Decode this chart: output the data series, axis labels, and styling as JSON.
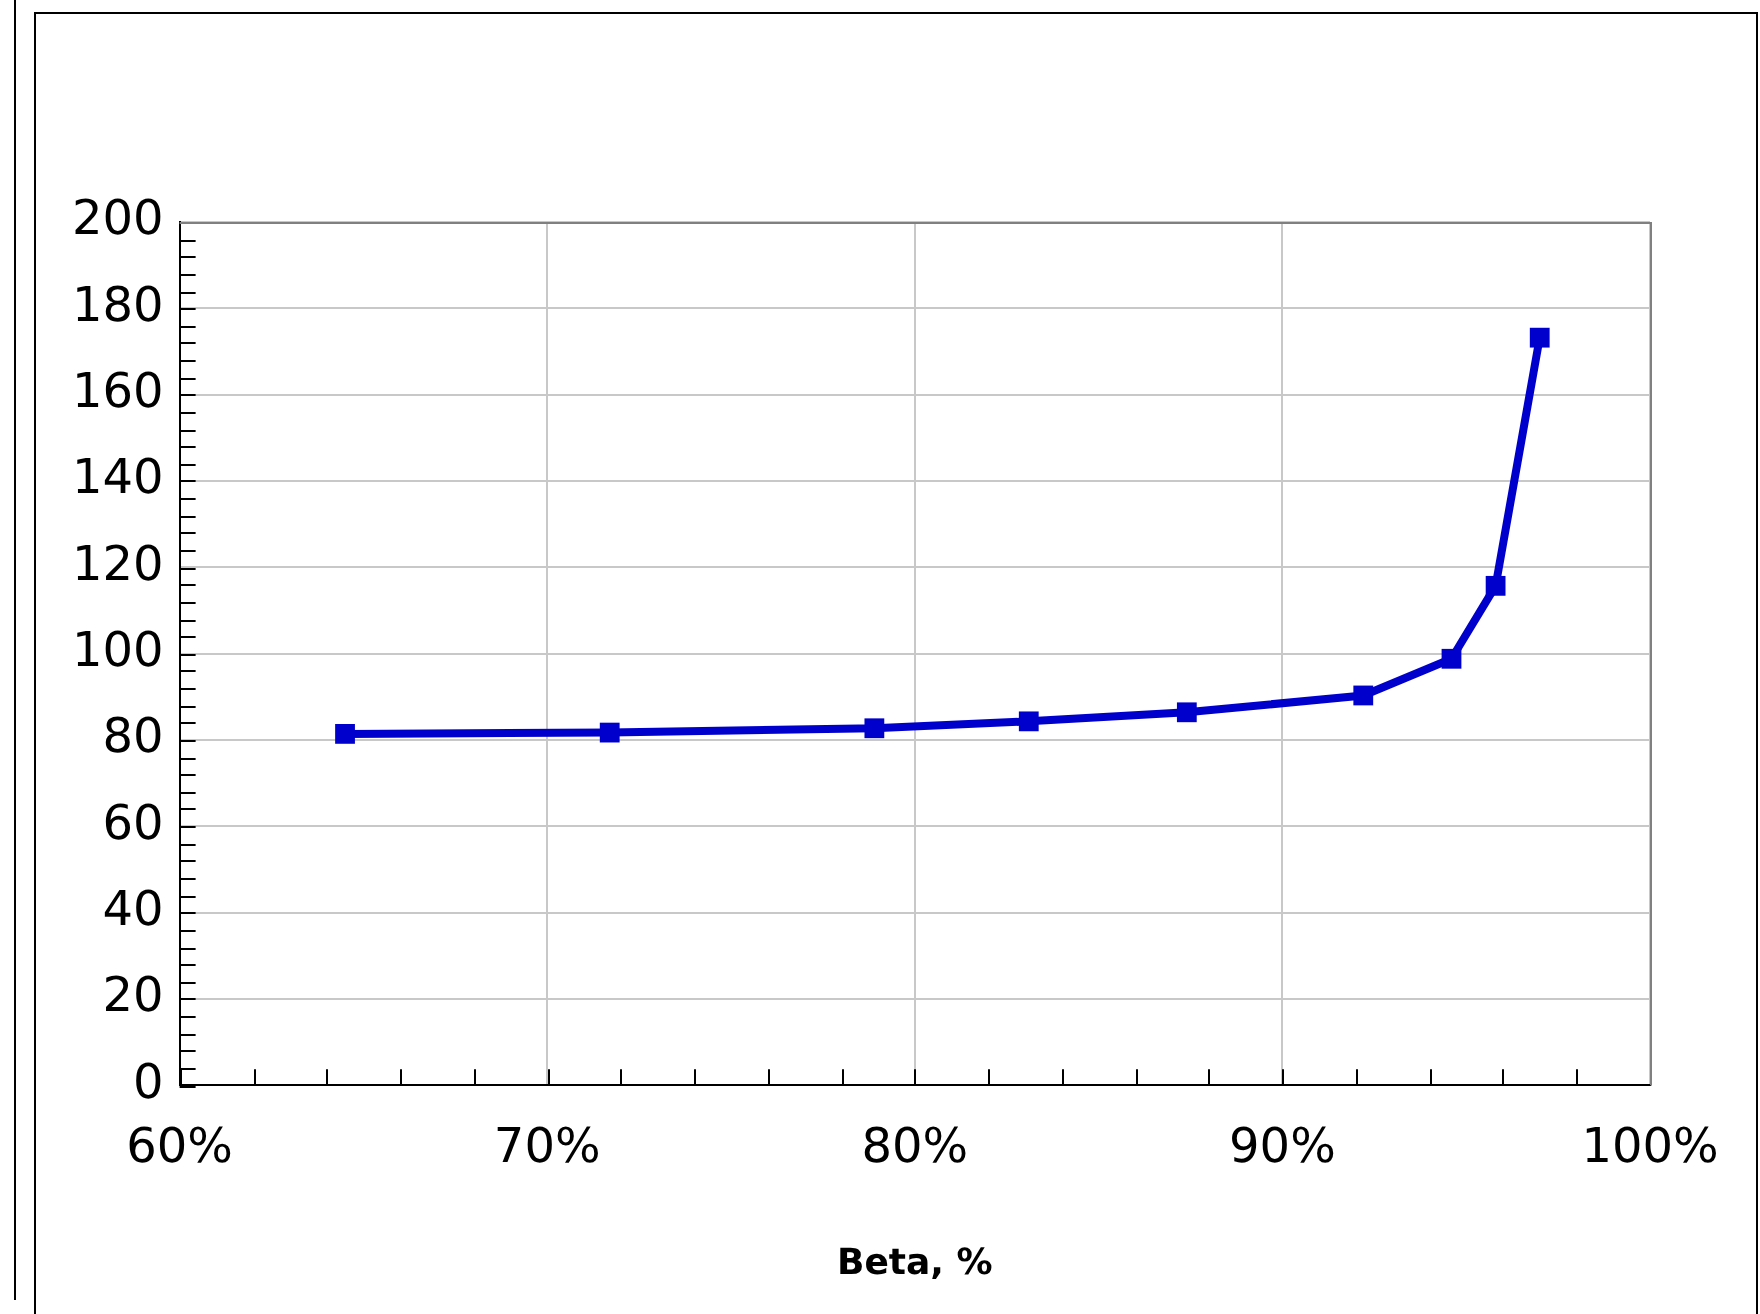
{
  "chart_data": {
    "type": "line",
    "xlabel": "Beta, %",
    "x": [
      64.5,
      71.7,
      78.9,
      83.1,
      87.4,
      92.2,
      94.6,
      95.8,
      97.0
    ],
    "series": [
      {
        "color": "#0000cc",
        "values": [
          81.4,
          81.7,
          82.7,
          84.3,
          86.4,
          90.3,
          98.8,
          115.7,
          173.2
        ]
      }
    ],
    "xlim": [
      60,
      100
    ],
    "xticks": [
      {
        "value": 60,
        "label": "60%"
      },
      {
        "value": 62,
        "label": null
      },
      {
        "value": 64,
        "label": null
      },
      {
        "value": 66,
        "label": null
      },
      {
        "value": 68,
        "label": null
      },
      {
        "value": 70,
        "label": "70%"
      },
      {
        "value": 72,
        "label": null
      },
      {
        "value": 74,
        "label": null
      },
      {
        "value": 76,
        "label": null
      },
      {
        "value": 78,
        "label": null
      },
      {
        "value": 80,
        "label": "80%"
      },
      {
        "value": 82,
        "label": null
      },
      {
        "value": 84,
        "label": null
      },
      {
        "value": 86,
        "label": null
      },
      {
        "value": 88,
        "label": null
      },
      {
        "value": 90,
        "label": "90%"
      },
      {
        "value": 92,
        "label": null
      },
      {
        "value": 94,
        "label": null
      },
      {
        "value": 96,
        "label": null
      },
      {
        "value": 98,
        "label": null
      },
      {
        "value": 100,
        "label": "100%"
      }
    ],
    "ylim": [
      0,
      200
    ],
    "yticks": [
      0,
      {
        "value": 4,
        "label": null
      },
      {
        "value": 8,
        "label": null
      },
      {
        "value": 12,
        "label": null
      },
      {
        "value": 16,
        "label": null
      },
      20,
      {
        "value": 24,
        "label": null
      },
      {
        "value": 28,
        "label": null
      },
      {
        "value": 32,
        "label": null
      },
      {
        "value": 36,
        "label": null
      },
      40,
      {
        "value": 44,
        "label": null
      },
      {
        "value": 48,
        "label": null
      },
      {
        "value": 52,
        "label": null
      },
      {
        "value": 56,
        "label": null
      },
      60,
      {
        "value": 64,
        "label": null
      },
      {
        "value": 68,
        "label": null
      },
      {
        "value": 72,
        "label": null
      },
      {
        "value": 76,
        "label": null
      },
      80,
      {
        "value": 84,
        "label": null
      },
      {
        "value": 88,
        "label": null
      },
      {
        "value": 92,
        "label": null
      },
      {
        "value": 96,
        "label": null
      },
      100,
      {
        "value": 104,
        "label": null
      },
      {
        "value": 108,
        "label": null
      },
      {
        "value": 112,
        "label": null
      },
      {
        "value": 116,
        "label": null
      },
      120,
      {
        "value": 124,
        "label": null
      },
      {
        "value": 128,
        "label": null
      },
      {
        "value": 132,
        "label": null
      },
      {
        "value": 136,
        "label": null
      },
      140,
      {
        "value": 144,
        "label": null
      },
      {
        "value": 148,
        "label": null
      },
      {
        "value": 152,
        "label": null
      },
      {
        "value": 156,
        "label": null
      },
      160,
      {
        "value": 164,
        "label": null
      },
      {
        "value": 168,
        "label": null
      },
      {
        "value": 172,
        "label": null
      },
      {
        "value": 176,
        "label": null
      },
      180,
      {
        "value": 184,
        "label": null
      },
      {
        "value": 188,
        "label": null
      },
      {
        "value": 192,
        "label": null
      },
      {
        "value": 196,
        "label": null
      },
      200
    ],
    "grid": true,
    "legend": false,
    "marker": "square",
    "line_style": "solid"
  }
}
